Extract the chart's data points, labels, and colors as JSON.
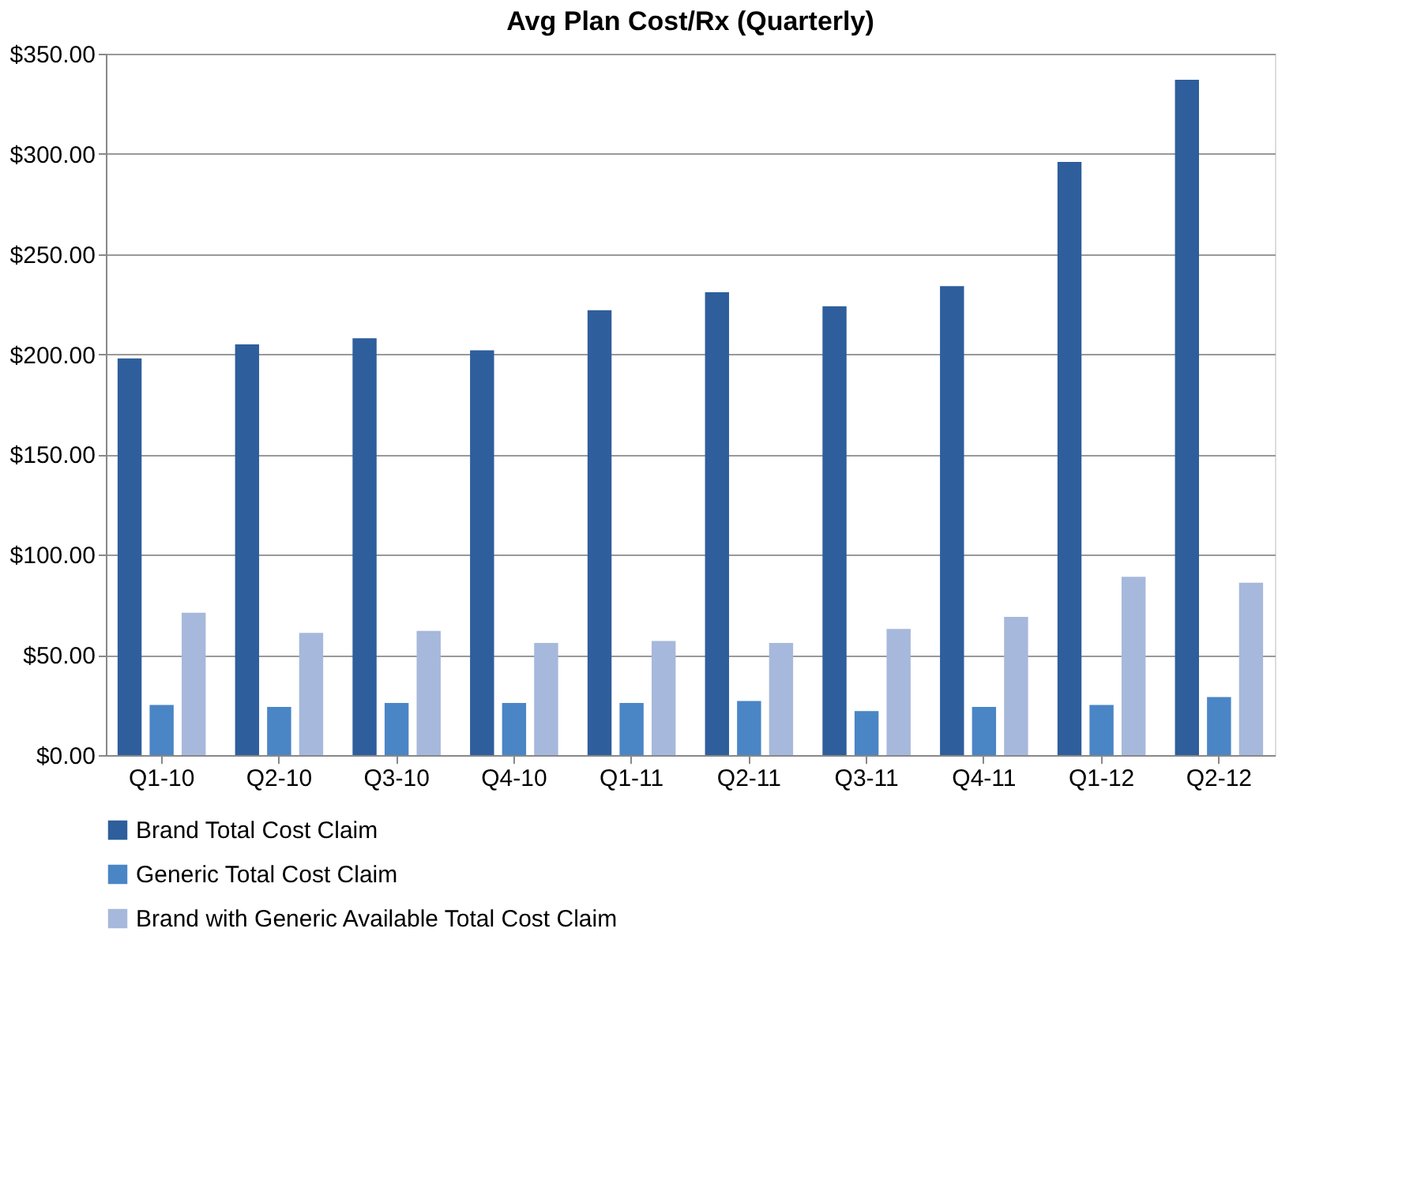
{
  "chart_data": {
    "type": "bar",
    "title": "Avg Plan Cost/Rx (Quarterly)",
    "categories": [
      "Q1-10",
      "Q2-10",
      "Q3-10",
      "Q4-10",
      "Q1-11",
      "Q2-11",
      "Q3-11",
      "Q4-11",
      "Q1-12",
      "Q2-12"
    ],
    "series": [
      {
        "name": "Brand Total Cost Claim",
        "color": "#2e5e9c",
        "values": [
          198,
          205,
          208,
          202,
          222,
          231,
          224,
          234,
          296,
          337
        ]
      },
      {
        "name": "Generic Total Cost Claim",
        "color": "#4a85c6",
        "values": [
          25,
          24,
          26,
          26,
          26,
          27,
          22,
          24,
          25,
          29
        ]
      },
      {
        "name": "Brand with Generic Available Total Cost Claim",
        "color": "#a6b8dc",
        "values": [
          71,
          61,
          62,
          56,
          57,
          56,
          63,
          69,
          89,
          86
        ]
      }
    ],
    "ylim": [
      0,
      350
    ],
    "yticks": [
      {
        "value": 0,
        "label": "$0.00"
      },
      {
        "value": 50,
        "label": "$50.00"
      },
      {
        "value": 100,
        "label": "$100.00"
      },
      {
        "value": 150,
        "label": "$150.00"
      },
      {
        "value": 200,
        "label": "$200.00"
      },
      {
        "value": 250,
        "label": "$250.00"
      },
      {
        "value": 300,
        "label": "$300.00"
      },
      {
        "value": 350,
        "label": "$350.00"
      }
    ],
    "grid": "y",
    "legend": "bottom"
  }
}
